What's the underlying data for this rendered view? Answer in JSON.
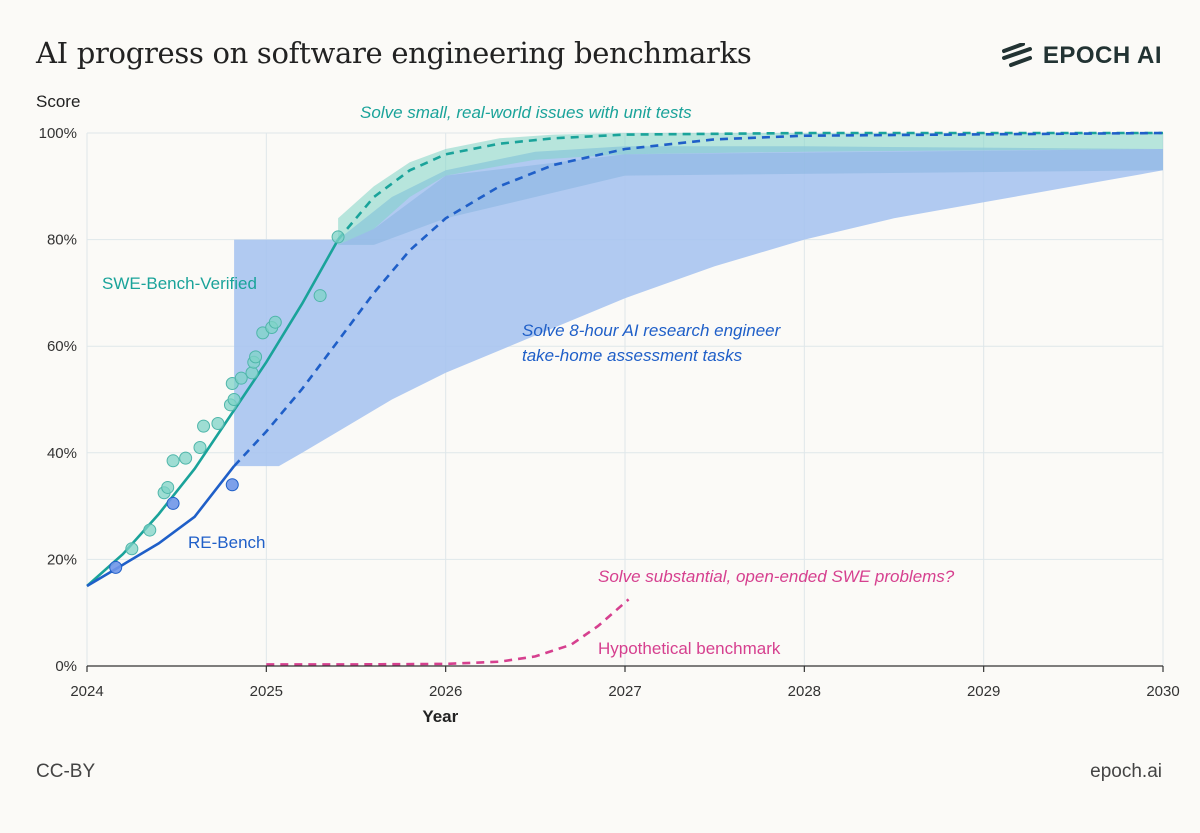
{
  "header": {
    "title": "AI progress on software engineering benchmarks",
    "brand": "EPOCH AI"
  },
  "footer": {
    "license": "CC-BY",
    "site": "epoch.ai"
  },
  "colors": {
    "swe": "#1aa39a",
    "swe_light": "#7fd3c7",
    "re": "#1f5fc8",
    "re_band": "#a9c4f0",
    "hyp": "#d6408f",
    "grid": "#dfe7ea"
  },
  "chart_data": {
    "type": "line",
    "ylabel": "Score",
    "xlabel": "Year",
    "xlim": [
      2024,
      2030
    ],
    "ylim": [
      0,
      100
    ],
    "xticks": [
      "2024",
      "2025",
      "2026",
      "2027",
      "2028",
      "2029",
      "2030"
    ],
    "yticks": [
      "0%",
      "20%",
      "40%",
      "60%",
      "80%",
      "100%"
    ],
    "series": [
      {
        "name": "SWE-Bench-Verified",
        "fit": [
          [
            2024.0,
            15
          ],
          [
            2024.2,
            21
          ],
          [
            2024.4,
            28.5
          ],
          [
            2024.6,
            37
          ],
          [
            2024.8,
            47
          ],
          [
            2025.0,
            57
          ],
          [
            2025.2,
            68
          ],
          [
            2025.4,
            80
          ]
        ],
        "forecast": [
          [
            2025.4,
            80
          ],
          [
            2025.6,
            88
          ],
          [
            2025.8,
            93
          ],
          [
            2026.0,
            96
          ],
          [
            2026.3,
            98
          ],
          [
            2026.6,
            99
          ],
          [
            2027.0,
            99.7
          ],
          [
            2028.0,
            100
          ],
          [
            2030.0,
            100
          ]
        ],
        "band_upper": [
          [
            2025.4,
            84
          ],
          [
            2025.6,
            90
          ],
          [
            2025.8,
            94.5
          ],
          [
            2026.0,
            97
          ],
          [
            2026.3,
            99
          ],
          [
            2026.6,
            99.7
          ],
          [
            2027.0,
            100
          ],
          [
            2030.0,
            100
          ]
        ],
        "band_lower": [
          [
            2025.4,
            79
          ],
          [
            2025.6,
            82
          ],
          [
            2025.8,
            88
          ],
          [
            2026.0,
            92
          ],
          [
            2026.5,
            95
          ],
          [
            2027.0,
            96
          ],
          [
            2028.0,
            96.5
          ],
          [
            2030.0,
            97
          ]
        ],
        "points": [
          [
            2024.25,
            22
          ],
          [
            2024.35,
            25.5
          ],
          [
            2024.43,
            32.5
          ],
          [
            2024.45,
            33.5
          ],
          [
            2024.48,
            38.5
          ],
          [
            2024.55,
            39
          ],
          [
            2024.63,
            41
          ],
          [
            2024.65,
            45
          ],
          [
            2024.73,
            45.5
          ],
          [
            2024.8,
            49
          ],
          [
            2024.81,
            53
          ],
          [
            2024.82,
            50
          ],
          [
            2024.86,
            54
          ],
          [
            2024.92,
            55
          ],
          [
            2024.93,
            57
          ],
          [
            2024.94,
            58
          ],
          [
            2024.98,
            62.5
          ],
          [
            2025.03,
            63.5
          ],
          [
            2025.05,
            64.5
          ],
          [
            2025.3,
            69.5
          ],
          [
            2025.4,
            80.5
          ]
        ],
        "label": "SWE-Bench-Verified",
        "annotation": "Solve small, real-world issues with unit tests"
      },
      {
        "name": "RE-Bench",
        "fit": [
          [
            2024.0,
            15
          ],
          [
            2024.2,
            19
          ],
          [
            2024.4,
            23
          ],
          [
            2024.6,
            28
          ],
          [
            2024.82,
            37.5
          ]
        ],
        "forecast": [
          [
            2024.82,
            37.5
          ],
          [
            2025.0,
            44
          ],
          [
            2025.2,
            52
          ],
          [
            2025.4,
            61
          ],
          [
            2025.6,
            70
          ],
          [
            2025.8,
            78
          ],
          [
            2026.0,
            84
          ],
          [
            2026.3,
            90
          ],
          [
            2026.6,
            94
          ],
          [
            2027.0,
            97
          ],
          [
            2027.5,
            98.8
          ],
          [
            2028.0,
            99.5
          ],
          [
            2030.0,
            100
          ]
        ],
        "band_upper": [
          [
            2024.82,
            37.5
          ],
          [
            2024.82,
            80
          ],
          [
            2025.4,
            80
          ],
          [
            2025.7,
            88
          ],
          [
            2026.0,
            93
          ],
          [
            2026.5,
            96.5
          ],
          [
            2027.0,
            97.5
          ],
          [
            2028.0,
            97.5
          ],
          [
            2030.0,
            97
          ]
        ],
        "band_lower": [
          [
            2024.82,
            37.5
          ],
          [
            2025.07,
            37.5
          ],
          [
            2025.2,
            40
          ],
          [
            2025.4,
            44
          ],
          [
            2025.7,
            50
          ],
          [
            2026.0,
            55
          ],
          [
            2026.5,
            62
          ],
          [
            2027.0,
            69
          ],
          [
            2027.5,
            75
          ],
          [
            2028.0,
            80
          ],
          [
            2028.5,
            84
          ],
          [
            2029.0,
            87
          ],
          [
            2029.5,
            90
          ],
          [
            2030.0,
            93
          ]
        ],
        "points": [
          [
            2024.16,
            18.5
          ],
          [
            2024.48,
            30.5
          ],
          [
            2024.81,
            34
          ]
        ],
        "label": "RE-Bench",
        "annotation_line1": "Solve 8-hour AI research engineer",
        "annotation_line2": "take-home assessment tasks"
      },
      {
        "name": "Hypothetical benchmark",
        "forecast": [
          [
            2025.0,
            0.3
          ],
          [
            2025.5,
            0.3
          ],
          [
            2026.0,
            0.4
          ],
          [
            2026.3,
            0.8
          ],
          [
            2026.5,
            1.8
          ],
          [
            2026.7,
            4
          ],
          [
            2026.85,
            7.5
          ],
          [
            2027.02,
            12.5
          ]
        ],
        "label": "Hypothetical benchmark",
        "annotation": "Solve substantial, open-ended SWE problems?"
      }
    ]
  }
}
